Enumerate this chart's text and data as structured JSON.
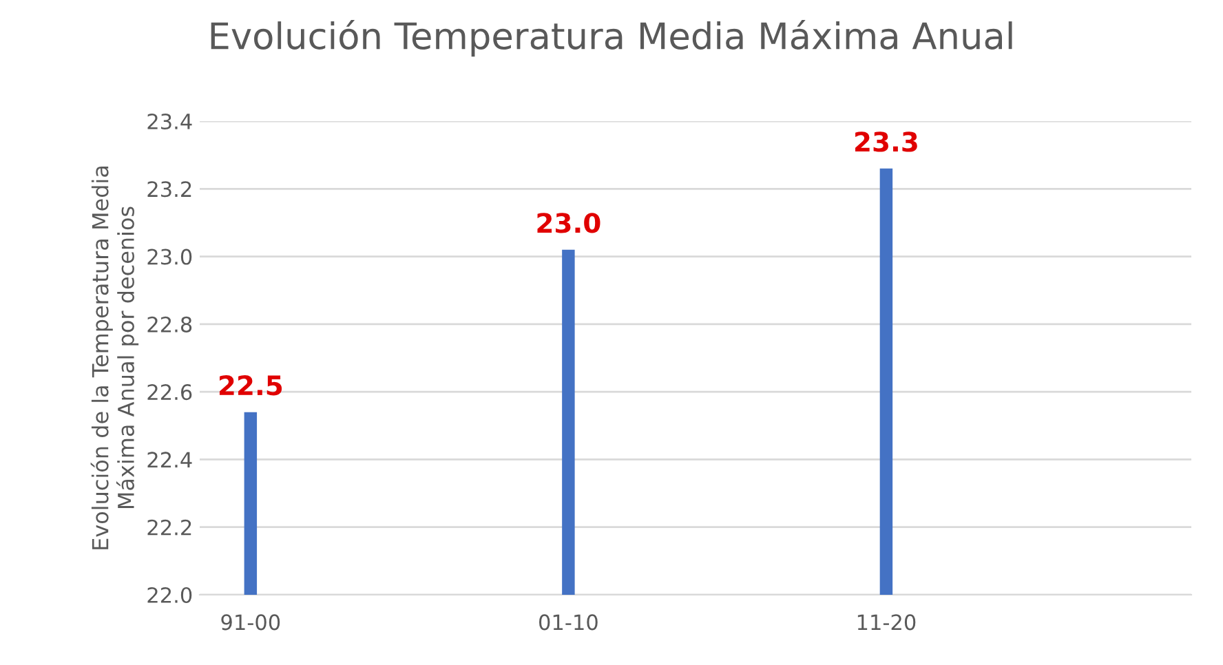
{
  "chart_data": {
    "type": "bar",
    "title": "Evolución Temperatura Media Máxima Anual",
    "ylabel": "Evolución de la Temperatura Media\nMáxima Anual por decenios",
    "categories": [
      "91-00",
      "01-10",
      "11-20"
    ],
    "values": [
      22.54,
      23.02,
      23.26
    ],
    "color": "#4472c4",
    "value_labels": [
      "22.5",
      "23.0",
      "23.3"
    ],
    "ylim": [
      22.0,
      23.4
    ],
    "yticks": [
      "22.0",
      "22.2",
      "22.4",
      "22.6",
      "22.8",
      "23.0",
      "23.2",
      "23.4"
    ],
    "grid": "y"
  }
}
